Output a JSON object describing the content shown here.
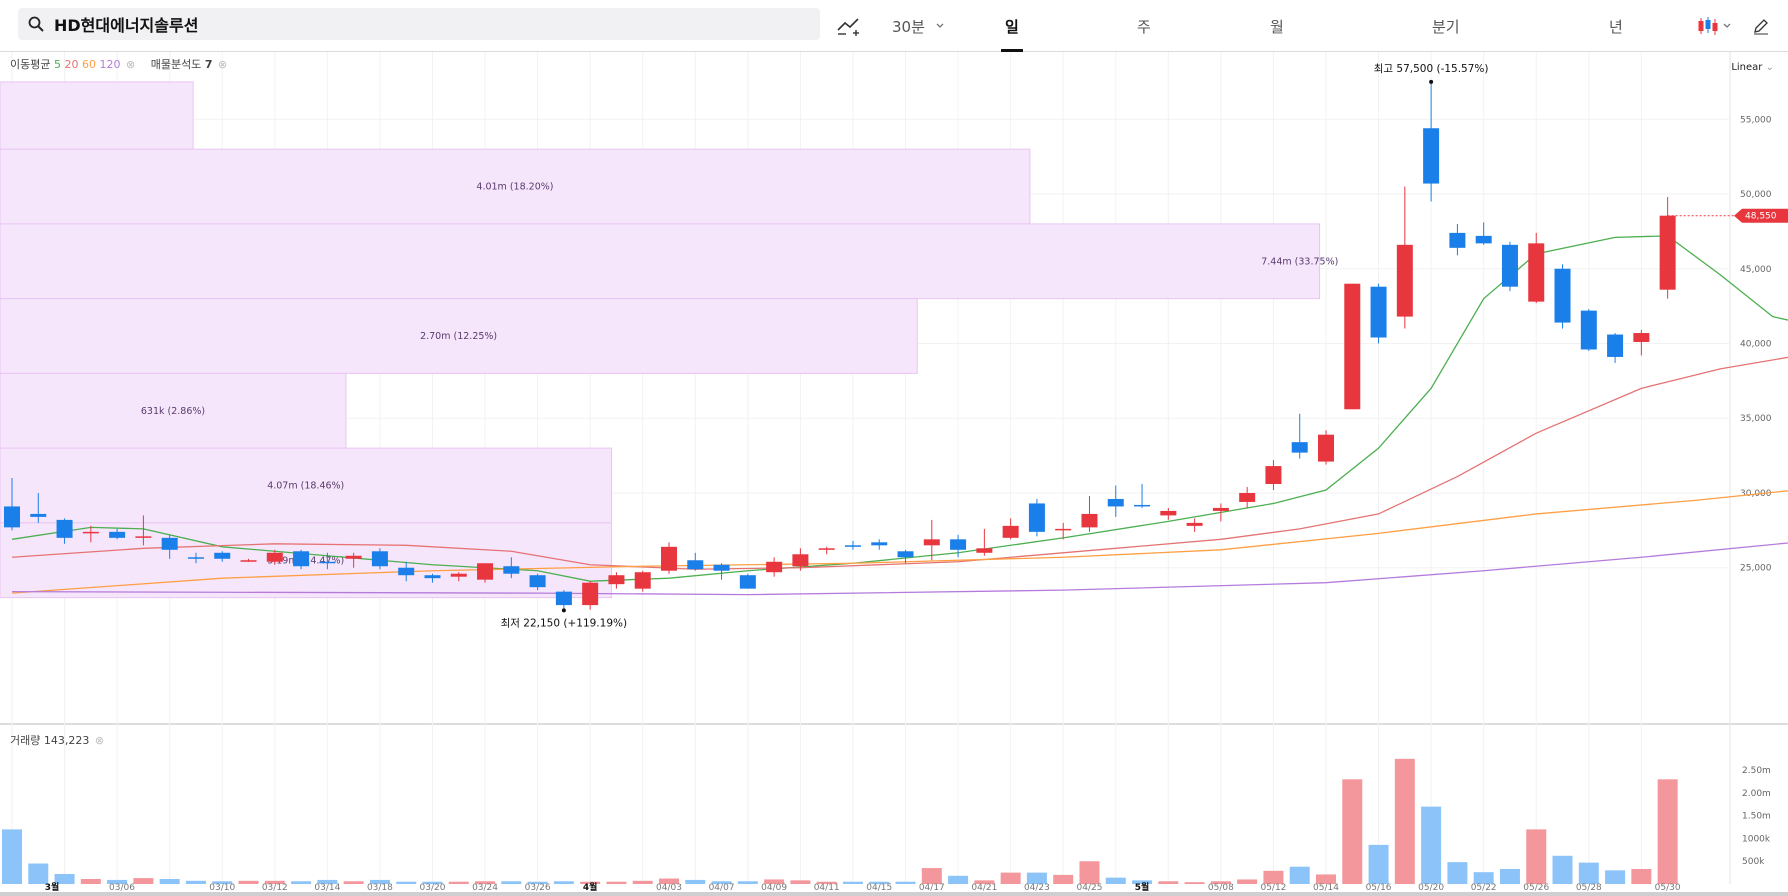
{
  "search": {
    "query": "HD현대에너지솔루션"
  },
  "toolbar": {
    "interval": "30분",
    "tabs": [
      "일",
      "주",
      "월",
      "분기",
      "년"
    ],
    "active_tab": "일",
    "scale": "Linear"
  },
  "legend": {
    "ma_label": "이동평균",
    "ma_periods": [
      "5",
      "20",
      "60",
      "120"
    ],
    "ma_colors": [
      "#4caf50",
      "#e57373",
      "#ff9f43",
      "#b57bdc"
    ],
    "vp_label": "매물분석도",
    "vp_value": "7",
    "volume_label": "거래량",
    "volume_value": "143,223"
  },
  "colors": {
    "up": "#e8363f",
    "down": "#1a7fe8",
    "vp": "#f6e6fb"
  },
  "chart_data": {
    "type": "candlestick",
    "price_axis": {
      "ylim": [
        20500,
        59500
      ],
      "ticks": [
        25000,
        30000,
        35000,
        40000,
        45000,
        50000,
        55000
      ],
      "tick_labels": [
        "25,000",
        "30,000",
        "35,000",
        "40,000",
        "45,000",
        "50,000",
        "55,000"
      ]
    },
    "x_tick_labels": [
      "3월",
      "03/06",
      "03/10",
      "03/12",
      "03/14",
      "03/18",
      "03/20",
      "03/24",
      "03/26",
      "4월",
      "04/03",
      "04/07",
      "04/09",
      "04/11",
      "04/15",
      "04/17",
      "04/21",
      "04/23",
      "04/25",
      "5월",
      "05/08",
      "05/12",
      "05/14",
      "05/16",
      "05/20",
      "05/22",
      "05/26",
      "05/28",
      "05/30"
    ],
    "current_price": "48,550",
    "high_label": {
      "prefix": "최고",
      "value": "57,500 (-15.57%)"
    },
    "low_label": {
      "prefix": "최저",
      "value": "22,150 (+119.19%)"
    },
    "candles": [
      [
        29100,
        31000,
        27500,
        27700
      ],
      [
        28600,
        30000,
        28000,
        28400
      ],
      [
        28200,
        28300,
        26600,
        27000
      ],
      [
        27300,
        27800,
        26700,
        27400
      ],
      [
        27400,
        27600,
        26900,
        27000
      ],
      [
        27000,
        28500,
        26500,
        27100
      ],
      [
        27000,
        27200,
        25600,
        26200
      ],
      [
        25700,
        26000,
        25300,
        25600
      ],
      [
        26000,
        26100,
        25400,
        25600
      ],
      [
        25500,
        25600,
        25400,
        25500
      ],
      [
        25400,
        26200,
        25200,
        26000
      ],
      [
        26100,
        26200,
        24900,
        25100
      ],
      [
        25400,
        26000,
        24900,
        25300
      ],
      [
        25600,
        26000,
        25000,
        25800
      ],
      [
        26100,
        26300,
        24900,
        25100
      ],
      [
        25000,
        25400,
        24100,
        24500
      ],
      [
        24500,
        24600,
        24000,
        24300
      ],
      [
        24400,
        24700,
        24100,
        24600
      ],
      [
        24200,
        25300,
        24000,
        25300
      ],
      [
        25100,
        25700,
        24300,
        24600
      ],
      [
        24500,
        24600,
        23500,
        23700
      ],
      [
        23400,
        23500,
        22150,
        22500
      ],
      [
        22500,
        24100,
        22200,
        24000
      ],
      [
        23900,
        24700,
        23600,
        24500
      ],
      [
        23600,
        24800,
        23400,
        24700
      ],
      [
        24800,
        26700,
        24600,
        26400
      ],
      [
        25500,
        26000,
        24800,
        24900
      ],
      [
        25200,
        25300,
        24200,
        24800
      ],
      [
        24500,
        24600,
        23600,
        23600
      ],
      [
        24700,
        25700,
        24400,
        25400
      ],
      [
        25100,
        26300,
        24800,
        25900
      ],
      [
        26200,
        26400,
        25900,
        26300
      ],
      [
        26500,
        26800,
        26200,
        26400
      ],
      [
        26700,
        26900,
        26200,
        26500
      ],
      [
        26100,
        26200,
        25300,
        25700
      ],
      [
        26500,
        28200,
        25500,
        26900
      ],
      [
        26900,
        27200,
        25700,
        26200
      ],
      [
        26000,
        27600,
        25800,
        26300
      ],
      [
        27000,
        28300,
        26900,
        27800
      ],
      [
        29300,
        29600,
        27100,
        27400
      ],
      [
        27500,
        28000,
        26900,
        27600
      ],
      [
        27700,
        29800,
        27400,
        28600
      ],
      [
        29600,
        30500,
        28400,
        29100
      ],
      [
        29200,
        30600,
        29000,
        29100
      ],
      [
        28500,
        29000,
        28200,
        28800
      ],
      [
        27800,
        28300,
        27400,
        28000
      ],
      [
        28800,
        29300,
        28100,
        29000
      ],
      [
        29400,
        30400,
        29000,
        30000
      ],
      [
        30600,
        32200,
        30200,
        31800
      ],
      [
        33400,
        35300,
        32300,
        32700
      ],
      [
        32100,
        34200,
        31900,
        33900
      ],
      [
        35600,
        44000,
        35600,
        44000
      ],
      [
        43800,
        44000,
        40000,
        40400
      ],
      [
        41800,
        50500,
        41000,
        46600
      ],
      [
        54400,
        57500,
        49500,
        50700
      ],
      [
        47400,
        48000,
        45900,
        46400
      ],
      [
        47200,
        48100,
        46600,
        46700
      ],
      [
        46600,
        46800,
        43500,
        43800
      ],
      [
        42800,
        47400,
        42700,
        46700
      ],
      [
        45000,
        45300,
        41000,
        41400
      ],
      [
        42200,
        42300,
        39500,
        39600
      ],
      [
        40600,
        40700,
        38700,
        39100
      ],
      [
        40100,
        40900,
        39200,
        40700
      ],
      [
        43600,
        49800,
        43000,
        48550
      ]
    ],
    "ma_series": [
      {
        "name": "5",
        "anchors": [
          [
            0,
            26900
          ],
          [
            3,
            27700
          ],
          [
            5,
            27600
          ],
          [
            8,
            26400
          ],
          [
            12,
            25800
          ],
          [
            16,
            25200
          ],
          [
            20,
            24800
          ],
          [
            22,
            24100
          ],
          [
            25,
            24300
          ],
          [
            28,
            24800
          ],
          [
            32,
            25300
          ],
          [
            36,
            26000
          ],
          [
            40,
            27000
          ],
          [
            44,
            28100
          ],
          [
            48,
            29300
          ],
          [
            50,
            30200
          ],
          [
            52,
            33000
          ],
          [
            54,
            37000
          ],
          [
            56,
            43000
          ],
          [
            58,
            46000
          ],
          [
            61,
            47100
          ],
          [
            63,
            47200
          ],
          [
            65,
            44600
          ],
          [
            67,
            41800
          ],
          [
            68,
            41400
          ],
          [
            69,
            41800
          ]
        ]
      },
      {
        "name": "20",
        "anchors": [
          [
            0,
            25700
          ],
          [
            5,
            26300
          ],
          [
            10,
            26600
          ],
          [
            15,
            26500
          ],
          [
            19,
            26100
          ],
          [
            22,
            25200
          ],
          [
            26,
            24900
          ],
          [
            30,
            25000
          ],
          [
            36,
            25400
          ],
          [
            42,
            26300
          ],
          [
            46,
            26900
          ],
          [
            49,
            27600
          ],
          [
            52,
            28600
          ],
          [
            55,
            31100
          ],
          [
            58,
            34000
          ],
          [
            62,
            37000
          ],
          [
            65,
            38300
          ],
          [
            68,
            39200
          ],
          [
            69,
            39500
          ]
        ]
      },
      {
        "name": "60",
        "anchors": [
          [
            0,
            23300
          ],
          [
            8,
            24300
          ],
          [
            16,
            24800
          ],
          [
            24,
            25100
          ],
          [
            32,
            25300
          ],
          [
            40,
            25700
          ],
          [
            46,
            26200
          ],
          [
            52,
            27300
          ],
          [
            58,
            28600
          ],
          [
            64,
            29500
          ],
          [
            69,
            30400
          ]
        ]
      },
      {
        "name": "120",
        "anchors": [
          [
            0,
            23400
          ],
          [
            20,
            23300
          ],
          [
            28,
            23200
          ],
          [
            40,
            23500
          ],
          [
            50,
            24000
          ],
          [
            56,
            24800
          ],
          [
            62,
            25700
          ],
          [
            69,
            26900
          ]
        ]
      }
    ],
    "volume_profile": [
      {
        "from": 53000,
        "to": 57500,
        "label": "",
        "pct": 0.12
      },
      {
        "from": 48000,
        "to": 53000,
        "label": "4.01m (18.20%)",
        "pct": 0.64
      },
      {
        "from": 43000,
        "to": 48000,
        "label": "7.44m (33.75%)",
        "pct": 0.82
      },
      {
        "from": 38000,
        "to": 43000,
        "label": "2.70m (12.25%)",
        "pct": 0.57
      },
      {
        "from": 33000,
        "to": 38000,
        "label": "631k (2.86%)",
        "pct": 0.215
      },
      {
        "from": 28000,
        "to": 33000,
        "label": "4.07m (18.46%)",
        "pct": 0.38
      },
      {
        "from": 23000,
        "to": 28000,
        "label": "3.19m (14.47%)",
        "pct": 0.38
      }
    ],
    "volume_axis": {
      "ticks": [
        500000,
        1000000,
        1500000,
        2000000,
        2500000
      ],
      "tick_labels": [
        "500k",
        "1000k",
        "1.50m",
        "2.00m",
        "2.50m"
      ],
      "max": 2900000
    },
    "volumes": [
      1200000,
      450000,
      220000,
      110000,
      90000,
      130000,
      110000,
      70000,
      60000,
      70000,
      70000,
      60000,
      90000,
      60000,
      90000,
      50000,
      50000,
      50000,
      60000,
      60000,
      50000,
      60000,
      50000,
      50000,
      70000,
      120000,
      90000,
      60000,
      60000,
      100000,
      80000,
      50000,
      50000,
      50000,
      50000,
      350000,
      180000,
      80000,
      250000,
      250000,
      200000,
      500000,
      140000,
      80000,
      60000,
      40000,
      60000,
      100000,
      290000,
      380000,
      210000,
      2300000,
      860000,
      2750000,
      1700000,
      480000,
      260000,
      330000,
      1200000,
      620000,
      470000,
      300000,
      330000,
      2300000
    ]
  }
}
